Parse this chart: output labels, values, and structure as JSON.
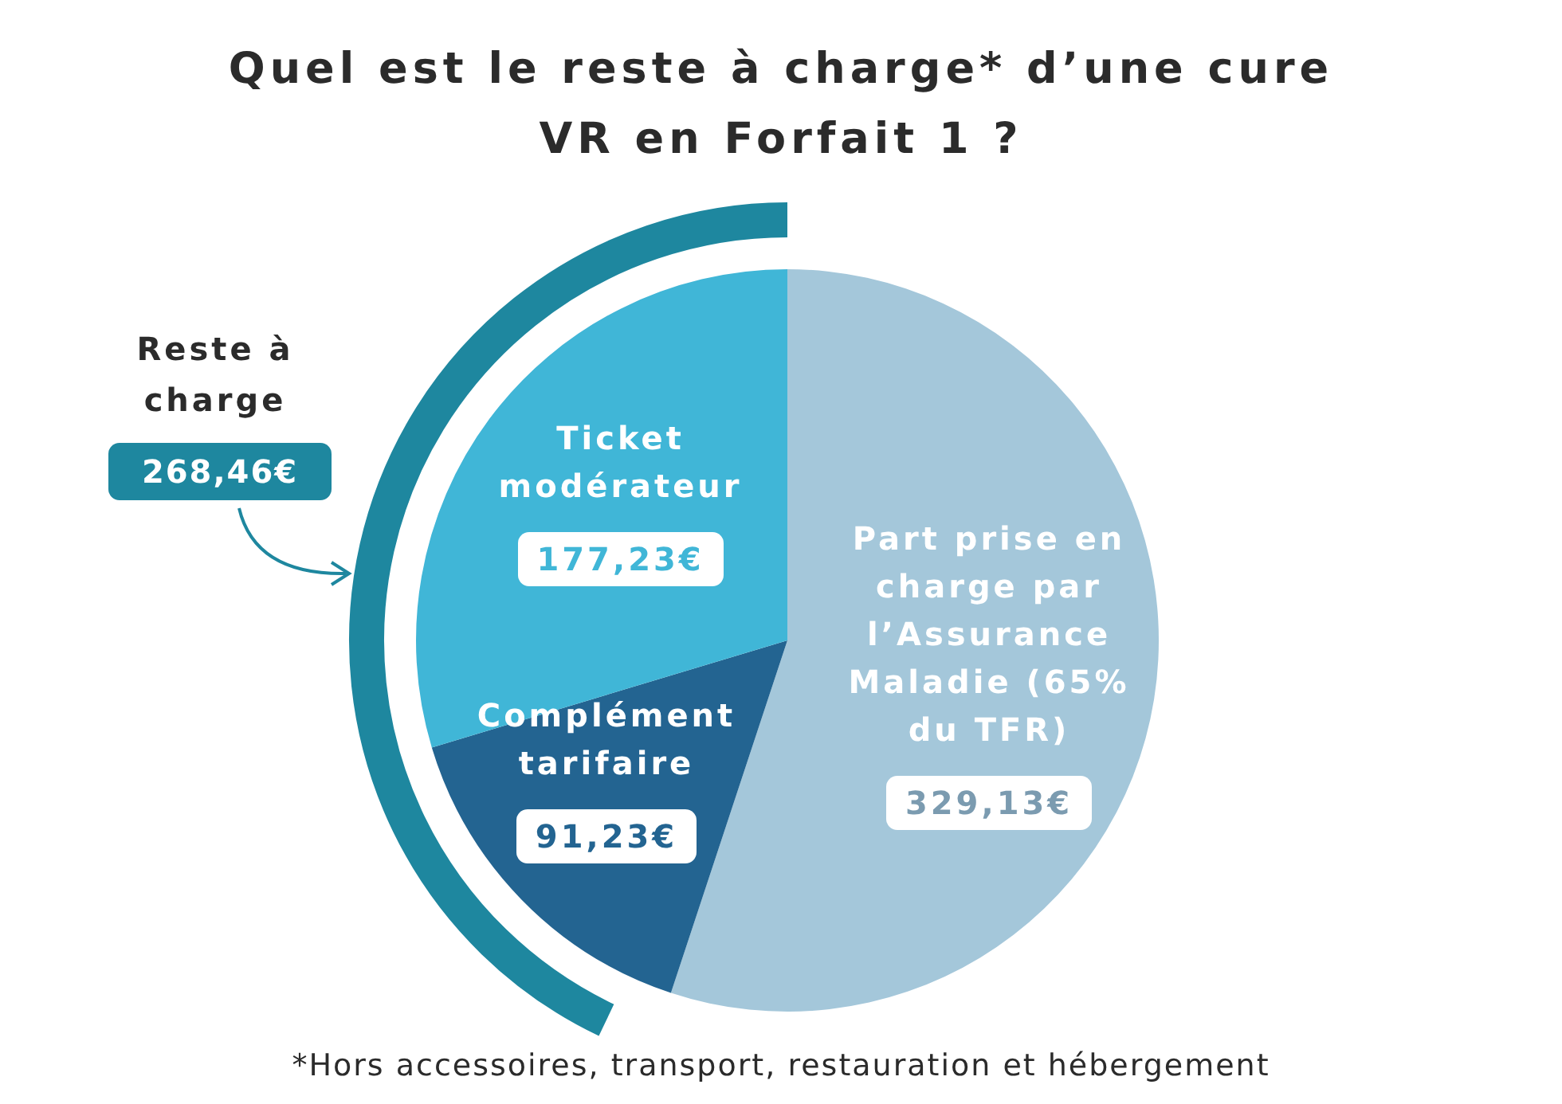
{
  "chart_data": {
    "type": "pie",
    "title": "Quel est le reste à charge* d’une cure VR en Forfait 1 ?",
    "categories": [
      "Part prise en charge par l’Assurance Maladie (65% du TFR)",
      "Complément tarifaire",
      "Ticket modérateur"
    ],
    "values": [
      329.13,
      91.23,
      177.23
    ],
    "value_labels": [
      "329,13€",
      "91,23€",
      "177,23€"
    ],
    "colors": [
      "#a4c7da",
      "#236491",
      "#40b6d7"
    ],
    "legend": false,
    "annotations": [
      "Reste à charge",
      "268,46€",
      "*Hors accessoires, transport, restauration et hébergement"
    ]
  }
}
